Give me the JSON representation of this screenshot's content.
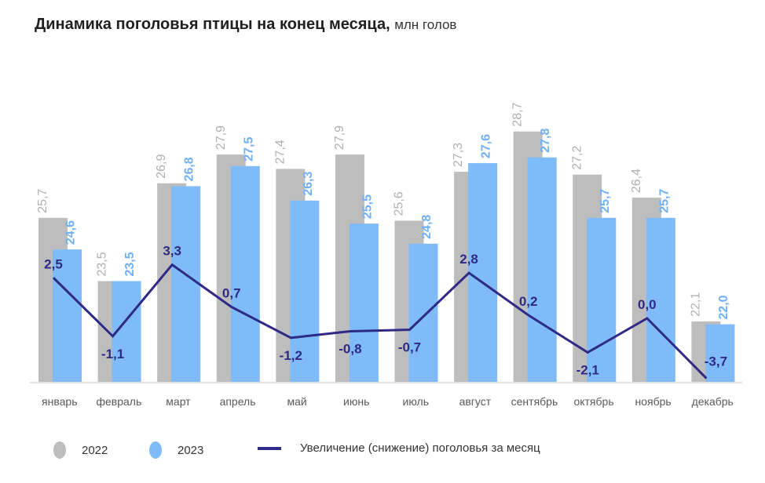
{
  "title": {
    "main": "Динамика поголовья птицы на конец месяца,",
    "unit": "млн голов"
  },
  "colors": {
    "series_2022": "#bdbdbd",
    "series_2023": "#7fbaf9",
    "line": "#2e2a86",
    "label_2022": "#b0b0b0",
    "label_2023": "#6fb0f6",
    "axis_labels": "#595959"
  },
  "legend": [
    {
      "label": "2022",
      "marker": "circle"
    },
    {
      "label": "2023",
      "marker": "circle"
    },
    {
      "label": "Увеличение (снижение) поголовья за месяц",
      "marker": "line"
    }
  ],
  "chart_data": {
    "type": "bar+line",
    "title": "Динамика поголовья птицы на конец месяца, млн голов",
    "xlabel": "",
    "ylabel": "",
    "categories": [
      "январь",
      "февраль",
      "март",
      "апрель",
      "май",
      "июнь",
      "июль",
      "август",
      "сентябрь",
      "октябрь",
      "ноябрь",
      "декабрь"
    ],
    "series": [
      {
        "name": "2022",
        "type": "bar",
        "values": [
          25.7,
          23.5,
          26.9,
          27.9,
          27.4,
          27.9,
          25.6,
          27.3,
          28.7,
          27.2,
          26.4,
          22.1
        ],
        "labels": [
          "25,7",
          "23,5",
          "26,9",
          "27,9",
          "27,4",
          "27,9",
          "25,6",
          "27,3",
          "28,7",
          "27,2",
          "26,4",
          "22,1"
        ]
      },
      {
        "name": "2023",
        "type": "bar",
        "values": [
          24.6,
          23.5,
          26.8,
          27.5,
          26.3,
          25.5,
          24.8,
          27.6,
          27.8,
          25.7,
          25.7,
          22.0
        ],
        "labels": [
          "24,6",
          "23,5",
          "26,8",
          "27,5",
          "26,3",
          "25,5",
          "24,8",
          "27,6",
          "27,8",
          "25,7",
          "25,7",
          "22,0"
        ]
      },
      {
        "name": "Увеличение (снижение) поголовья за месяц",
        "type": "line",
        "values": [
          2.5,
          -1.1,
          3.3,
          0.7,
          -1.2,
          -0.8,
          -0.7,
          2.8,
          0.2,
          -2.1,
          0.0,
          -3.7
        ],
        "labels": [
          "2,5",
          "-1,1",
          "3,3",
          "0,7",
          "-1,2",
          "-0,8",
          "-0,7",
          "2,8",
          "0,2",
          "-2,1",
          "0,0",
          "-3,7"
        ]
      }
    ],
    "bar_axis_range": [
      20,
      29
    ],
    "line_axis_range": [
      -4,
      4
    ],
    "grid": false,
    "legend_position": "bottom-left"
  }
}
